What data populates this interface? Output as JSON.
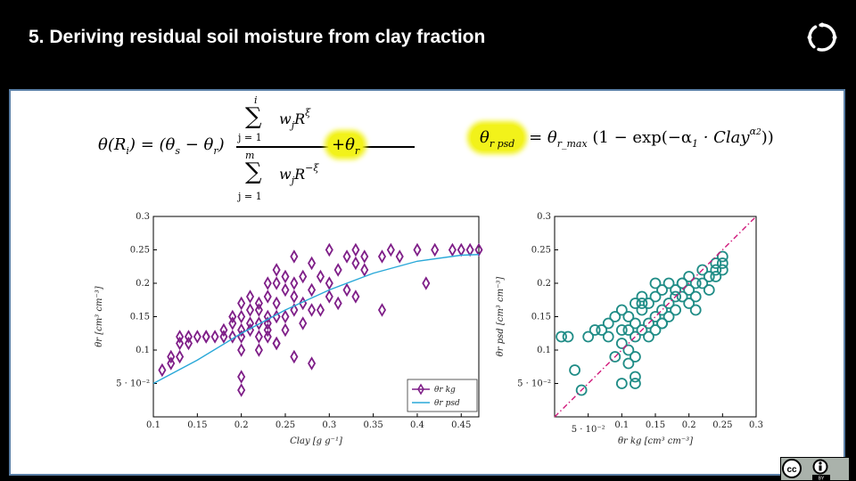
{
  "slide": {
    "title": "5. Deriving residual soil moisture from clay fraction"
  },
  "equations": {
    "left": {
      "lhs": "θ(R",
      "lhs_sub": "i",
      "lhs_close": ") = (θ",
      "s_sub": "s",
      "minus": " − θ",
      "r_sub": "r",
      "rparen": ")",
      "num_top": "i",
      "num_term": "w",
      "num_j": "j",
      "num_R": "R",
      "num_exp": "ξ",
      "num_bottom": "j = 1",
      "den_top": "m",
      "den_term": "w",
      "den_j": "j",
      "den_R": "R",
      "den_exp": "−ξ",
      "den_bottom": "j = 1",
      "plus": "+θ",
      "plus_sub": "r"
    },
    "right": {
      "lhs": "θ",
      "lhs_sub": "r psd",
      "eq": "= θ",
      "max_sub": "r_max",
      "body": "(1 − exp(−α",
      "a1": "1",
      "clay": " · Clay",
      "a2": "α",
      "a2_sub": "2",
      "close": "))"
    }
  },
  "chart_data": [
    {
      "type": "scatter",
      "xlabel": "Clay [g g⁻¹]",
      "ylabel": "θr [cm³ cm⁻³]",
      "xlim": [
        0.1,
        0.47
      ],
      "ylim": [
        0.0,
        0.3
      ],
      "x_ticks": [
        "0.1",
        "0.15",
        "0.2",
        "0.25",
        "0.3",
        "0.35",
        "0.4",
        "0.45"
      ],
      "y_ticks": [
        "0.1",
        "0.15",
        "0.2",
        "0.25",
        "0.3"
      ],
      "y_tick_extra": "5 · 10⁻²",
      "legend_placement": "bottom-right",
      "series": [
        {
          "name": "θr kg",
          "marker": "diamond",
          "color": "#7f1f88",
          "x": [
            0.11,
            0.12,
            0.12,
            0.13,
            0.13,
            0.13,
            0.14,
            0.14,
            0.15,
            0.16,
            0.16,
            0.17,
            0.18,
            0.18,
            0.19,
            0.19,
            0.19,
            0.2,
            0.2,
            0.2,
            0.2,
            0.2,
            0.2,
            0.21,
            0.21,
            0.21,
            0.21,
            0.22,
            0.22,
            0.22,
            0.22,
            0.22,
            0.23,
            0.23,
            0.23,
            0.23,
            0.23,
            0.23,
            0.24,
            0.24,
            0.24,
            0.24,
            0.24,
            0.25,
            0.25,
            0.25,
            0.25,
            0.26,
            0.26,
            0.26,
            0.26,
            0.27,
            0.27,
            0.27,
            0.28,
            0.28,
            0.28,
            0.29,
            0.29,
            0.3,
            0.3,
            0.3,
            0.31,
            0.31,
            0.32,
            0.32,
            0.33,
            0.33,
            0.33,
            0.34,
            0.34,
            0.36,
            0.37,
            0.38,
            0.4,
            0.42,
            0.44,
            0.45,
            0.46,
            0.47,
            0.2,
            0.24,
            0.26,
            0.28,
            0.36,
            0.41
          ],
          "y": [
            0.07,
            0.08,
            0.09,
            0.12,
            0.09,
            0.11,
            0.12,
            0.11,
            0.12,
            0.12,
            0.12,
            0.12,
            0.12,
            0.13,
            0.14,
            0.12,
            0.15,
            0.13,
            0.15,
            0.17,
            0.12,
            0.1,
            0.04,
            0.13,
            0.16,
            0.18,
            0.14,
            0.14,
            0.16,
            0.12,
            0.1,
            0.17,
            0.14,
            0.12,
            0.15,
            0.18,
            0.13,
            0.2,
            0.15,
            0.11,
            0.17,
            0.2,
            0.22,
            0.15,
            0.19,
            0.21,
            0.13,
            0.16,
            0.18,
            0.2,
            0.24,
            0.14,
            0.17,
            0.21,
            0.16,
            0.19,
            0.23,
            0.16,
            0.21,
            0.18,
            0.2,
            0.25,
            0.17,
            0.22,
            0.19,
            0.24,
            0.18,
            0.23,
            0.25,
            0.22,
            0.24,
            0.24,
            0.25,
            0.24,
            0.25,
            0.25,
            0.25,
            0.25,
            0.25,
            0.25,
            0.06,
            0.11,
            0.09,
            0.08,
            0.16,
            0.2
          ]
        },
        {
          "name": "θr psd",
          "marker": "line",
          "color": "#29a8d8",
          "x": [
            0.1,
            0.15,
            0.2,
            0.25,
            0.3,
            0.35,
            0.4,
            0.45,
            0.47
          ],
          "y": [
            0.05,
            0.085,
            0.125,
            0.16,
            0.19,
            0.215,
            0.233,
            0.242,
            0.243
          ]
        }
      ]
    },
    {
      "type": "scatter",
      "xlabel": "θr kg [cm³ cm⁻³]",
      "ylabel": "θr psd [cm³ cm⁻³]",
      "xlim": [
        0.0,
        0.3
      ],
      "ylim": [
        0.0,
        0.3
      ],
      "x_ticks": [
        "0.1",
        "0.15",
        "0.2",
        "0.25",
        "0.3"
      ],
      "x_tick_extra": "5 · 10⁻²",
      "y_ticks": [
        "0.1",
        "0.15",
        "0.2",
        "0.25",
        "0.3"
      ],
      "y_tick_extra": "5 · 10⁻²",
      "series": [
        {
          "name": "",
          "marker": "circle",
          "color": "#1f8c86",
          "x": [
            0.01,
            0.02,
            0.03,
            0.04,
            0.05,
            0.06,
            0.07,
            0.08,
            0.08,
            0.09,
            0.1,
            0.1,
            0.1,
            0.11,
            0.11,
            0.11,
            0.12,
            0.12,
            0.12,
            0.12,
            0.13,
            0.13,
            0.13,
            0.14,
            0.14,
            0.14,
            0.15,
            0.15,
            0.15,
            0.15,
            0.16,
            0.16,
            0.16,
            0.17,
            0.17,
            0.17,
            0.18,
            0.18,
            0.18,
            0.19,
            0.19,
            0.2,
            0.2,
            0.2,
            0.21,
            0.21,
            0.22,
            0.22,
            0.23,
            0.23,
            0.24,
            0.24,
            0.25,
            0.25,
            0.25,
            0.11,
            0.12,
            0.13,
            0.16,
            0.19,
            0.21,
            0.24,
            0.1,
            0.12,
            0.09
          ],
          "y": [
            0.12,
            0.12,
            0.07,
            0.04,
            0.12,
            0.13,
            0.13,
            0.14,
            0.12,
            0.15,
            0.13,
            0.11,
            0.16,
            0.1,
            0.13,
            0.15,
            0.12,
            0.14,
            0.17,
            0.09,
            0.13,
            0.16,
            0.18,
            0.14,
            0.17,
            0.12,
            0.15,
            0.18,
            0.13,
            0.2,
            0.16,
            0.19,
            0.14,
            0.17,
            0.2,
            0.15,
            0.16,
            0.19,
            0.18,
            0.18,
            0.2,
            0.19,
            0.17,
            0.21,
            0.2,
            0.18,
            0.2,
            0.22,
            0.21,
            0.19,
            0.22,
            0.23,
            0.23,
            0.24,
            0.22,
            0.08,
            0.06,
            0.17,
            0.14,
            0.2,
            0.16,
            0.21,
            0.05,
            0.05,
            0.09
          ]
        },
        {
          "name": "",
          "marker": "dashdot",
          "color": "#d0177a",
          "x": [
            0.0,
            0.3
          ],
          "y": [
            0.0,
            0.3
          ]
        }
      ]
    }
  ],
  "badge": {
    "cc": "cc",
    "by": "BY"
  }
}
